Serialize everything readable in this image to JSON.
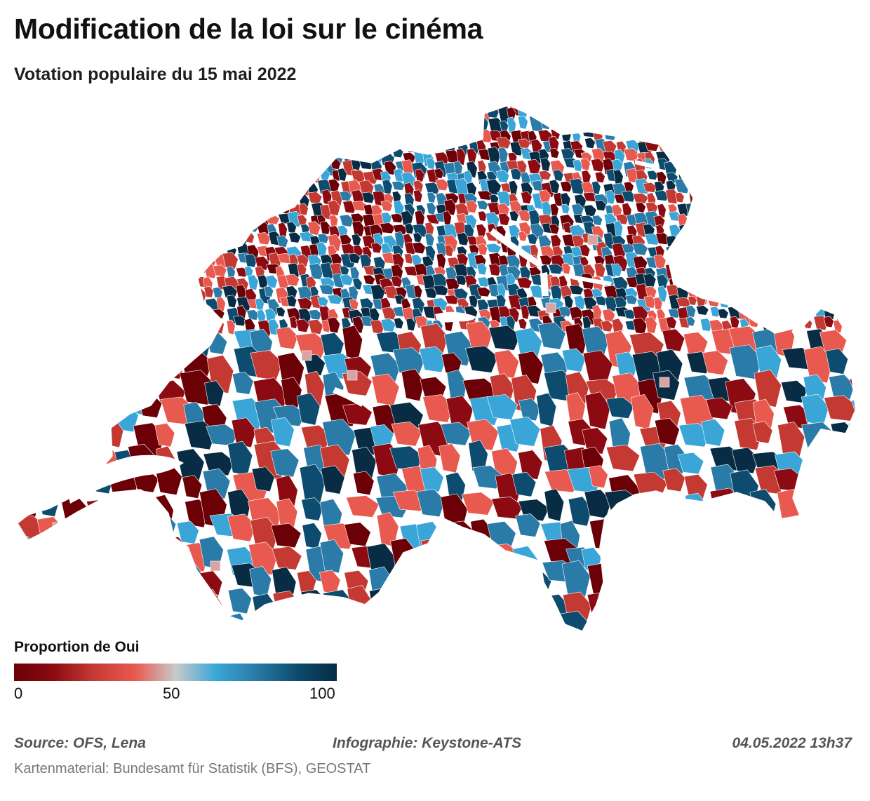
{
  "title": "Modification de la loi sur le cinéma",
  "subtitle": "Votation populaire du 15 mai 2022",
  "legend": {
    "title": "Proportion de Oui",
    "ticks": [
      "0",
      "50",
      "100"
    ],
    "gradient_stops": [
      "#6b0006",
      "#8c0b12",
      "#c63b35",
      "#e85a50",
      "#c9c9c9",
      "#3aa6d8",
      "#2a7ba7",
      "#0d4c6e",
      "#072c44"
    ]
  },
  "footer": {
    "source": "Source: OFS, Lena",
    "infographic": "Infographie: Keystone-ATS",
    "timestamp": "04.05.2022 13h37",
    "credit": "Kartenmaterial: Bundesamt für Statistik (BFS), GEOSTAT"
  },
  "map": {
    "region": "Switzerland municipalities",
    "palette": [
      "#6b0006",
      "#8c0b12",
      "#c43a33",
      "#e85a50",
      "#3aa6d8",
      "#2a7ba7",
      "#0d4c6e",
      "#072c44"
    ],
    "lake_color": "#ffffff"
  }
}
